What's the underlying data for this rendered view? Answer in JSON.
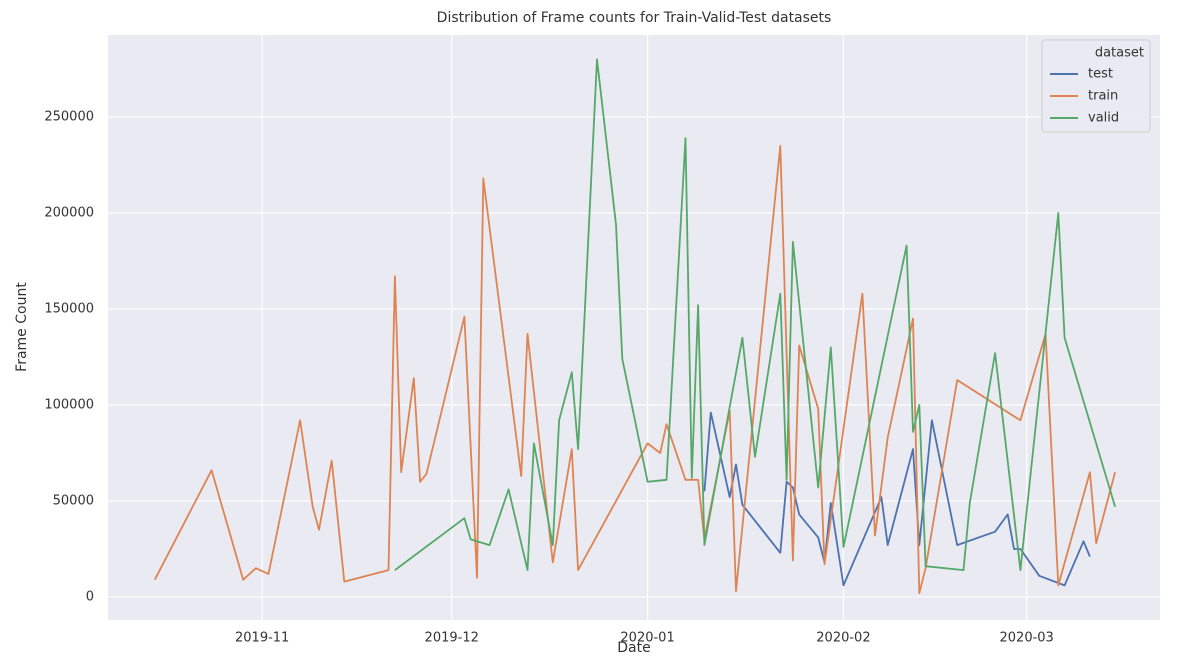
{
  "chart_data": {
    "type": "line",
    "title": "Distribution of Frame counts for Train-Valid-Test datasets",
    "x_label": "Date",
    "y_label": "Frame Count",
    "legend_title": "dataset",
    "legend_position": "upper right",
    "grid": true,
    "xlim": [
      18176.6,
      18343.1
    ],
    "ylim": [
      -12000,
      292700
    ],
    "xticks": [
      {
        "value": 18201,
        "label": "2019-11"
      },
      {
        "value": 18231,
        "label": "2019-12"
      },
      {
        "value": 18262,
        "label": "2020-01"
      },
      {
        "value": 18293,
        "label": "2020-02"
      },
      {
        "value": 18322,
        "label": "2020-03"
      }
    ],
    "yticks": [
      0,
      50000,
      100000,
      150000,
      200000,
      250000
    ],
    "series": [
      {
        "name": "test",
        "color": "#4c72b0",
        "x": [
          18271,
          18272,
          18275,
          18276,
          18277,
          18283,
          18284,
          18285,
          18286,
          18289,
          18290,
          18291,
          18293,
          18299,
          18300,
          18304,
          18305,
          18307,
          18311,
          18317,
          18319,
          18320,
          18321,
          18324,
          18328,
          18331,
          18332
        ],
        "values": [
          55000,
          96000,
          52000,
          69000,
          48000,
          23000,
          60000,
          57000,
          43000,
          31000,
          18000,
          49000,
          6000,
          52000,
          27000,
          77000,
          27000,
          92000,
          27000,
          34000,
          43000,
          25000,
          25000,
          11000,
          6000,
          29000,
          21000
        ]
      },
      {
        "name": "train",
        "color": "#dd8452",
        "x": [
          18184,
          18193,
          18198,
          18200,
          18202,
          18207,
          18209,
          18210,
          18212,
          18214,
          18221,
          18222,
          18223,
          18225,
          18226,
          18227,
          18233,
          18235,
          18236,
          18242,
          18243,
          18247,
          18250,
          18251,
          18262,
          18264,
          18265,
          18268,
          18270,
          18271,
          18275,
          18276,
          18283,
          18285,
          18286,
          18289,
          18290,
          18296,
          18298,
          18300,
          18304,
          18305,
          18306,
          18311,
          18321,
          18325,
          18327,
          18332,
          18333,
          18336
        ],
        "values": [
          9000,
          66000,
          9000,
          15000,
          12000,
          92000,
          47000,
          35000,
          71000,
          8000,
          14000,
          167000,
          65000,
          114000,
          60000,
          64000,
          146000,
          10000,
          218000,
          63000,
          137000,
          18000,
          77000,
          14000,
          80000,
          75000,
          90000,
          61000,
          61000,
          30000,
          97000,
          3000,
          235000,
          19000,
          131000,
          98000,
          17000,
          158000,
          32000,
          83000,
          145000,
          2000,
          15000,
          113000,
          92000,
          137000,
          6000,
          65000,
          28000,
          65000
        ]
      },
      {
        "name": "valid",
        "color": "#55a868",
        "x": [
          18222,
          18233,
          18234,
          18237,
          18240,
          18243,
          18244,
          18247,
          18248,
          18250,
          18251,
          18254,
          18257,
          18258,
          18262,
          18265,
          18268,
          18269,
          18270,
          18271,
          18277,
          18279,
          18283,
          18284,
          18285,
          18289,
          18291,
          18293,
          18303,
          18304,
          18305,
          18306,
          18312,
          18313,
          18317,
          18321,
          18327,
          18328,
          18336
        ],
        "values": [
          14000,
          41000,
          30000,
          27000,
          56000,
          14000,
          80000,
          27000,
          92000,
          117000,
          77000,
          280000,
          194000,
          124000,
          60000,
          61000,
          239000,
          62000,
          152000,
          27000,
          135000,
          73000,
          158000,
          61000,
          185000,
          57000,
          130000,
          26000,
          183000,
          86000,
          100000,
          16000,
          14000,
          49000,
          127000,
          14000,
          200000,
          135000,
          47000
        ]
      }
    ]
  }
}
